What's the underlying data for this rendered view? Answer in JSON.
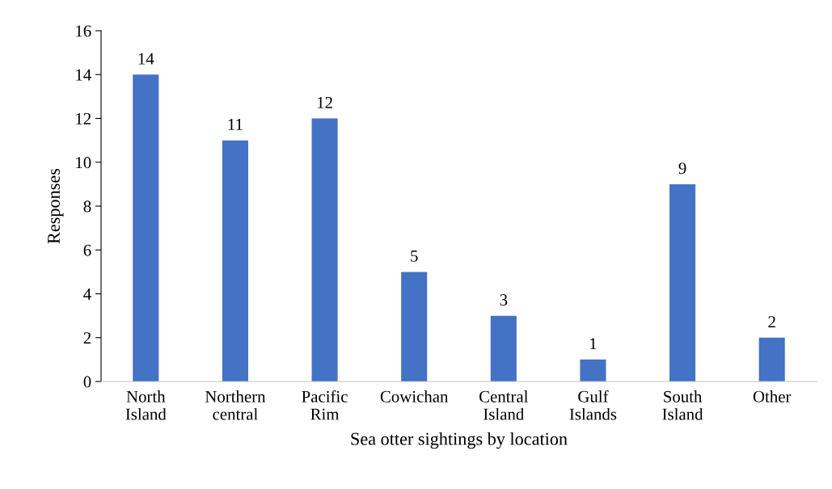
{
  "chart_data": {
    "type": "bar",
    "xlabel": "Sea otter sightings by location",
    "ylabel": "Responses",
    "categories": [
      "North\nIsland",
      "Northern\ncentral",
      "Pacific\nRim",
      "Cowichan",
      "Central\nIsland",
      "Gulf\nIslands",
      "South\nIsland",
      "Other"
    ],
    "values": [
      14,
      11,
      12,
      5,
      3,
      1,
      9,
      2
    ],
    "color": "#4472c4",
    "ylim": [
      0,
      16
    ],
    "yticks": [
      0,
      2,
      4,
      6,
      8,
      10,
      12,
      14,
      16
    ],
    "grid": false,
    "data_labels": true
  }
}
